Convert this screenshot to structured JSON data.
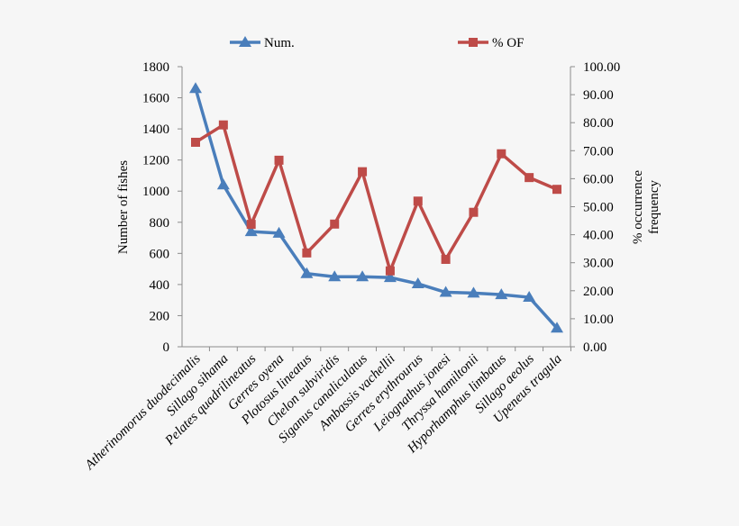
{
  "chart_data": {
    "type": "line",
    "categories": [
      "Atherinomorus duodecimalis",
      "Sillago sihama",
      "Pelates quadrilineatus",
      "Gerres oyena",
      "Plotosus lineatus",
      "Chelon subviridis",
      "Siganus canaliculatus",
      "Ambassis vachellii",
      "Gerres erythrourus",
      "Leiognathus jonesi",
      "Thryssa hamiltonii",
      "Hyporhamphus  limbatus",
      "Sillago aeolus",
      "Upeneus tragula"
    ],
    "series": [
      {
        "name": "Num.",
        "axis": "left",
        "color": "#4a7ebb",
        "marker": "triangle",
        "values": [
          1660,
          1040,
          740,
          730,
          470,
          450,
          450,
          445,
          405,
          350,
          345,
          335,
          318,
          120
        ]
      },
      {
        "name": "% OF",
        "axis": "right",
        "color": "#be4b48",
        "marker": "square",
        "values": [
          73.0,
          79.2,
          43.7,
          66.6,
          33.5,
          43.8,
          62.5,
          27.1,
          52.0,
          31.2,
          48.0,
          68.9,
          60.4,
          56.2
        ]
      }
    ],
    "ylabel": "Number of fishes",
    "y2label": [
      "% occurrence",
      "frequency"
    ],
    "ylim": [
      0,
      1800
    ],
    "y2lim": [
      0,
      100
    ],
    "yticks": [
      "0",
      "200",
      "400",
      "600",
      "800",
      "1000",
      "1200",
      "1400",
      "1600",
      "1800"
    ],
    "y2ticks": [
      "0.00",
      "10.00",
      "20.00",
      "30.00",
      "40.00",
      "50.00",
      "60.00",
      "70.00",
      "80.00",
      "90.00",
      "100.00"
    ],
    "grid": false,
    "legend_position": "top"
  }
}
